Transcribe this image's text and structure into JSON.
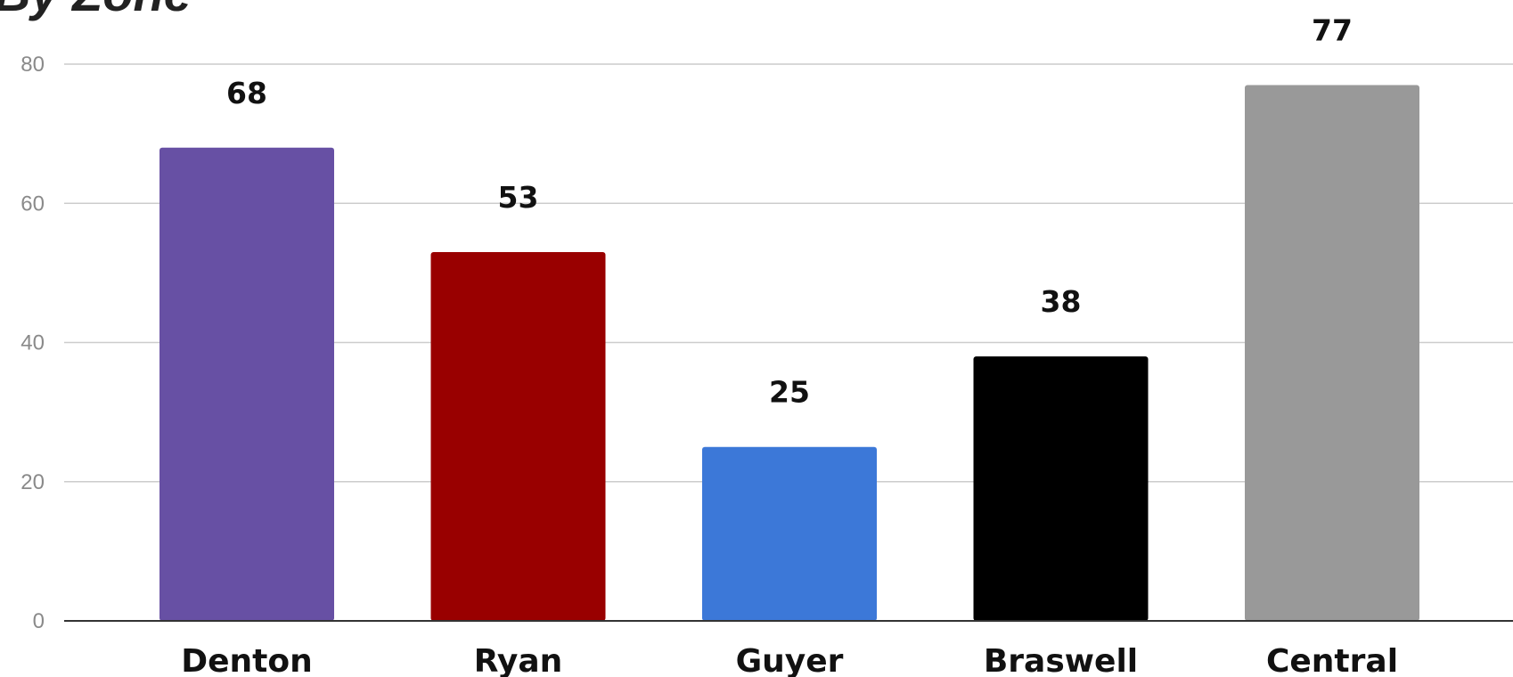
{
  "chart_data": {
    "type": "bar",
    "title": "By Zone",
    "xlabel": "",
    "ylabel": "",
    "ylim": [
      0,
      80
    ],
    "yticks": [
      0,
      20,
      40,
      60,
      80
    ],
    "grid": true,
    "categories": [
      "Denton",
      "Ryan",
      "Guyer",
      "Braswell",
      "Central"
    ],
    "values": [
      68,
      53,
      25,
      38,
      77
    ],
    "colors": [
      "#6750A4",
      "#990000",
      "#3C78D8",
      "#000000",
      "#999999"
    ]
  }
}
